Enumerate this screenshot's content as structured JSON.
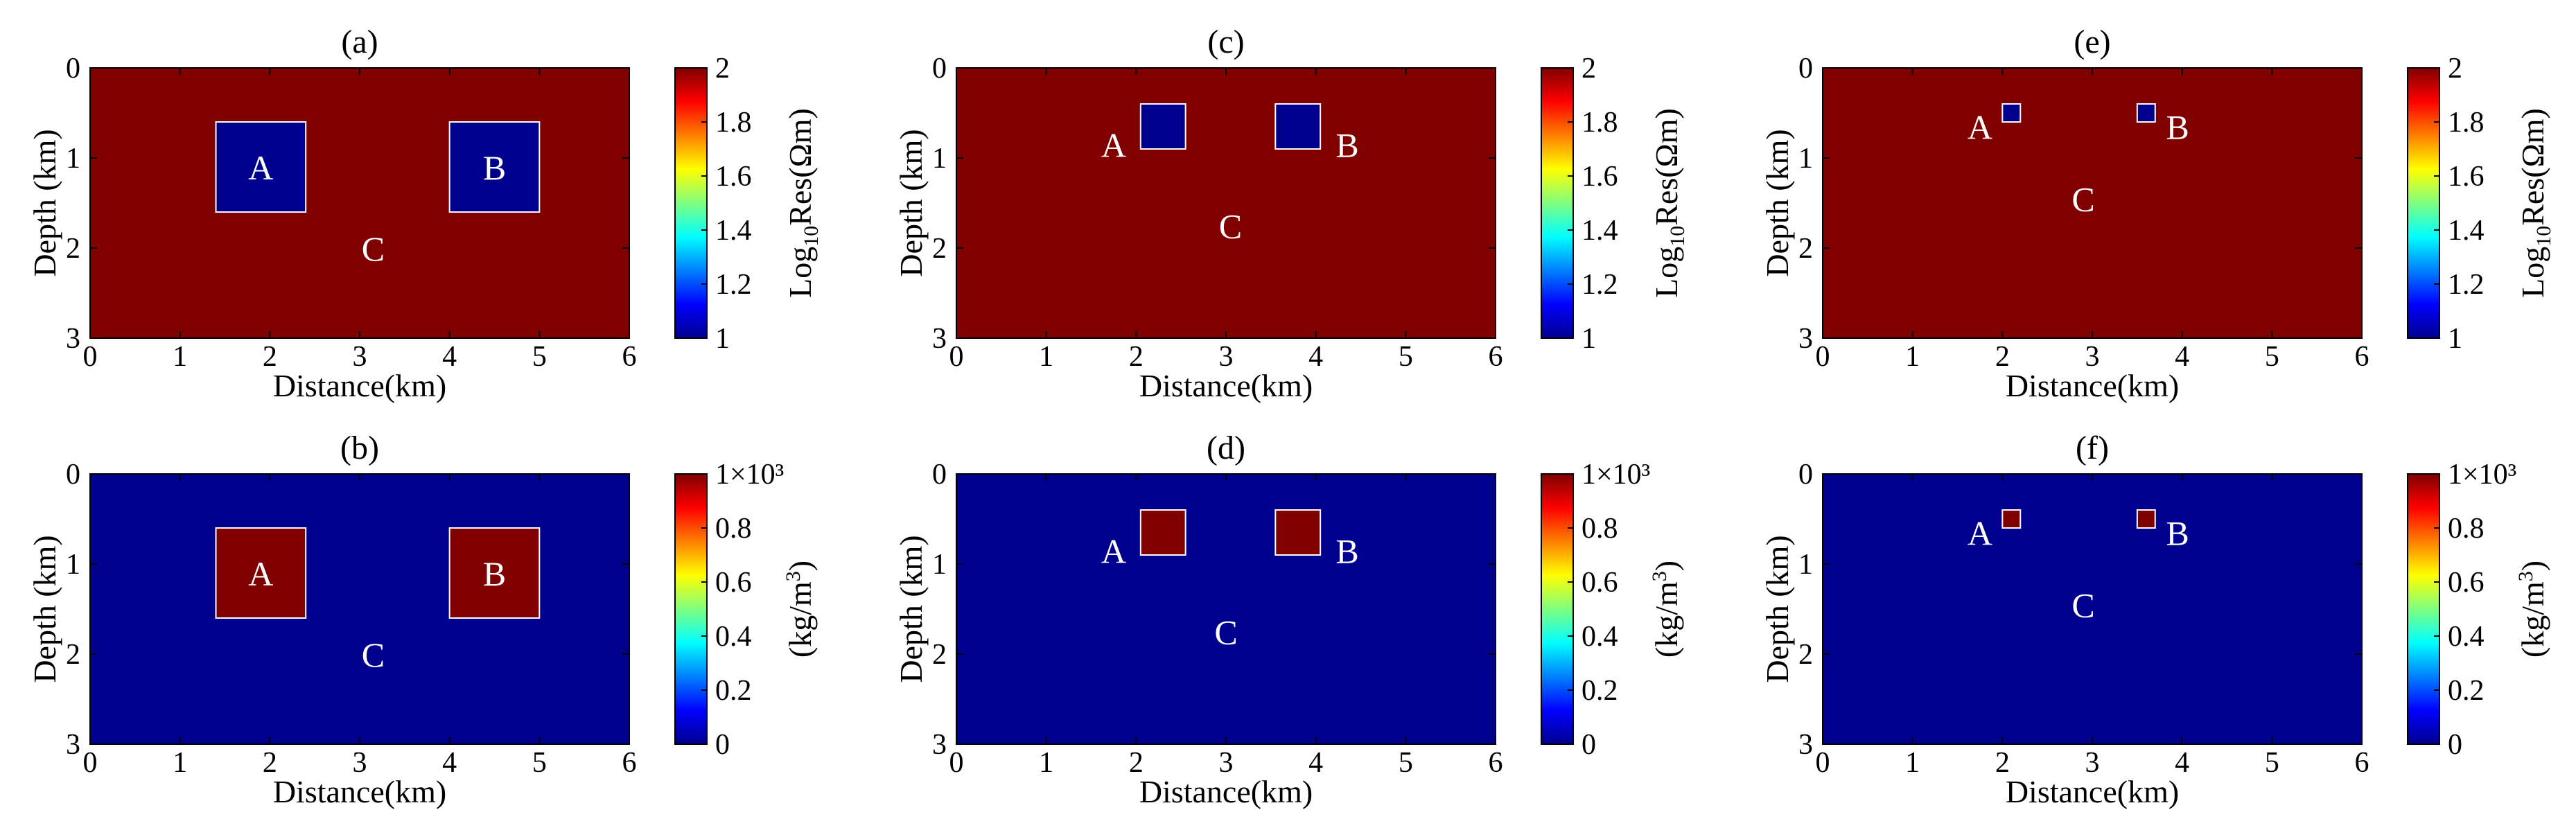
{
  "chart_data": [
    {
      "type": "heatmap",
      "title": "(a)",
      "xlabel": "Distance(km)",
      "ylabel": "Depth (km)",
      "xlim": [
        0,
        6
      ],
      "ylim": [
        0,
        3
      ],
      "xticks": [
        "0",
        "1",
        "2",
        "3",
        "4",
        "5",
        "6"
      ],
      "yticks": [
        "0",
        "1",
        "2",
        "3"
      ],
      "y_reversed": true,
      "background_value": 2,
      "colorbar": {
        "min": 1,
        "max": 2,
        "ticks": [
          "2",
          "1.8",
          "1.6",
          "1.4",
          "1.2",
          "1"
        ],
        "label_pre": "Log",
        "label_sub": "10",
        "label_post": "Res(Ωm)"
      },
      "anomalies": [
        {
          "label": "A",
          "x": [
            1.4,
            2.4
          ],
          "y": [
            0.6,
            1.6
          ],
          "value": 1
        },
        {
          "label": "B",
          "x": [
            4.0,
            5.0
          ],
          "y": [
            0.6,
            1.6
          ],
          "value": 1
        }
      ],
      "labels": [
        {
          "text": "A",
          "x": 1.9,
          "y": 1.1
        },
        {
          "text": "B",
          "x": 4.5,
          "y": 1.1
        },
        {
          "text": "C",
          "x": 3.15,
          "y": 2.0
        }
      ]
    },
    {
      "type": "heatmap",
      "title": "(c)",
      "xlabel": "Distance(km)",
      "ylabel": "Depth (km)",
      "xlim": [
        0,
        6
      ],
      "ylim": [
        0,
        3
      ],
      "xticks": [
        "0",
        "1",
        "2",
        "3",
        "4",
        "5",
        "6"
      ],
      "yticks": [
        "0",
        "1",
        "2",
        "3"
      ],
      "y_reversed": true,
      "background_value": 2,
      "colorbar": {
        "min": 1,
        "max": 2,
        "ticks": [
          "2",
          "1.8",
          "1.6",
          "1.4",
          "1.2",
          "1"
        ],
        "label_pre": "Log",
        "label_sub": "10",
        "label_post": "Res(Ωm)"
      },
      "anomalies": [
        {
          "label": "A",
          "x": [
            2.05,
            2.55
          ],
          "y": [
            0.4,
            0.9
          ],
          "value": 1
        },
        {
          "label": "B",
          "x": [
            3.55,
            4.05
          ],
          "y": [
            0.4,
            0.9
          ],
          "value": 1
        }
      ],
      "labels": [
        {
          "text": "A",
          "x": 1.75,
          "y": 0.85
        },
        {
          "text": "B",
          "x": 4.35,
          "y": 0.85
        },
        {
          "text": "C",
          "x": 3.05,
          "y": 1.75
        }
      ]
    },
    {
      "type": "heatmap",
      "title": "(e)",
      "xlabel": "Distance(km)",
      "ylabel": "Depth (km)",
      "xlim": [
        0,
        6
      ],
      "ylim": [
        0,
        3
      ],
      "xticks": [
        "0",
        "1",
        "2",
        "3",
        "4",
        "5",
        "6"
      ],
      "yticks": [
        "0",
        "1",
        "2",
        "3"
      ],
      "y_reversed": true,
      "background_value": 2,
      "colorbar": {
        "min": 1,
        "max": 2,
        "ticks": [
          "2",
          "1.8",
          "1.6",
          "1.4",
          "1.2",
          "1"
        ],
        "label_pre": "Log",
        "label_sub": "10",
        "label_post": "Res(Ωm)"
      },
      "anomalies": [
        {
          "label": "A",
          "x": [
            2.0,
            2.2
          ],
          "y": [
            0.4,
            0.6
          ],
          "value": 1
        },
        {
          "label": "B",
          "x": [
            3.5,
            3.7
          ],
          "y": [
            0.4,
            0.6
          ],
          "value": 1
        }
      ],
      "labels": [
        {
          "text": "A",
          "x": 1.75,
          "y": 0.65
        },
        {
          "text": "B",
          "x": 3.95,
          "y": 0.65
        },
        {
          "text": "C",
          "x": 2.9,
          "y": 1.45
        }
      ]
    },
    {
      "type": "heatmap",
      "title": "(b)",
      "xlabel": "Distance(km)",
      "ylabel": "Depth (km)",
      "xlim": [
        0,
        6
      ],
      "ylim": [
        0,
        3
      ],
      "xticks": [
        "0",
        "1",
        "2",
        "3",
        "4",
        "5",
        "6"
      ],
      "yticks": [
        "0",
        "1",
        "2",
        "3"
      ],
      "y_reversed": true,
      "background_value": 0,
      "colorbar": {
        "min": 0,
        "max": 1000,
        "ticks": [
          "1×10³",
          "0.8",
          "0.6",
          "0.4",
          "0.2",
          "0"
        ],
        "label_pre": "(kg/m",
        "label_sup": "3",
        "label_post": ")"
      },
      "anomalies": [
        {
          "label": "A",
          "x": [
            1.4,
            2.4
          ],
          "y": [
            0.6,
            1.6
          ],
          "value": 1000
        },
        {
          "label": "B",
          "x": [
            4.0,
            5.0
          ],
          "y": [
            0.6,
            1.6
          ],
          "value": 1000
        }
      ],
      "labels": [
        {
          "text": "A",
          "x": 1.9,
          "y": 1.1
        },
        {
          "text": "B",
          "x": 4.5,
          "y": 1.1
        },
        {
          "text": "C",
          "x": 3.15,
          "y": 2.0
        }
      ]
    },
    {
      "type": "heatmap",
      "title": "(d)",
      "xlabel": "Distance(km)",
      "ylabel": "Depth (km)",
      "xlim": [
        0,
        6
      ],
      "ylim": [
        0,
        3
      ],
      "xticks": [
        "0",
        "1",
        "2",
        "3",
        "4",
        "5",
        "6"
      ],
      "yticks": [
        "0",
        "1",
        "2",
        "3"
      ],
      "y_reversed": true,
      "background_value": 0,
      "colorbar": {
        "min": 0,
        "max": 1000,
        "ticks": [
          "1×10³",
          "0.8",
          "0.6",
          "0.4",
          "0.2",
          "0"
        ],
        "label_pre": "(kg/m",
        "label_sup": "3",
        "label_post": ")"
      },
      "anomalies": [
        {
          "label": "A",
          "x": [
            2.05,
            2.55
          ],
          "y": [
            0.4,
            0.9
          ],
          "value": 1000
        },
        {
          "label": "B",
          "x": [
            3.55,
            4.05
          ],
          "y": [
            0.4,
            0.9
          ],
          "value": 1000
        }
      ],
      "labels": [
        {
          "text": "A",
          "x": 1.75,
          "y": 0.85
        },
        {
          "text": "B",
          "x": 4.35,
          "y": 0.85
        },
        {
          "text": "C",
          "x": 3.0,
          "y": 1.75
        }
      ]
    },
    {
      "type": "heatmap",
      "title": "(f)",
      "xlabel": "Distance(km)",
      "ylabel": "Depth (km)",
      "xlim": [
        0,
        6
      ],
      "ylim": [
        0,
        3
      ],
      "xticks": [
        "0",
        "1",
        "2",
        "3",
        "4",
        "5",
        "6"
      ],
      "yticks": [
        "0",
        "1",
        "2",
        "3"
      ],
      "y_reversed": true,
      "background_value": 0,
      "colorbar": {
        "min": 0,
        "max": 1000,
        "ticks": [
          "1×10³",
          "0.8",
          "0.6",
          "0.4",
          "0.2",
          "0"
        ],
        "label_pre": "(kg/m",
        "label_sup": "3",
        "label_post": ")"
      },
      "anomalies": [
        {
          "label": "A",
          "x": [
            2.0,
            2.2
          ],
          "y": [
            0.4,
            0.6
          ],
          "value": 1000
        },
        {
          "label": "B",
          "x": [
            3.5,
            3.7
          ],
          "y": [
            0.4,
            0.6
          ],
          "value": 1000
        }
      ],
      "labels": [
        {
          "text": "A",
          "x": 1.75,
          "y": 0.65
        },
        {
          "text": "B",
          "x": 3.95,
          "y": 0.65
        },
        {
          "text": "C",
          "x": 2.9,
          "y": 1.45
        }
      ]
    }
  ]
}
